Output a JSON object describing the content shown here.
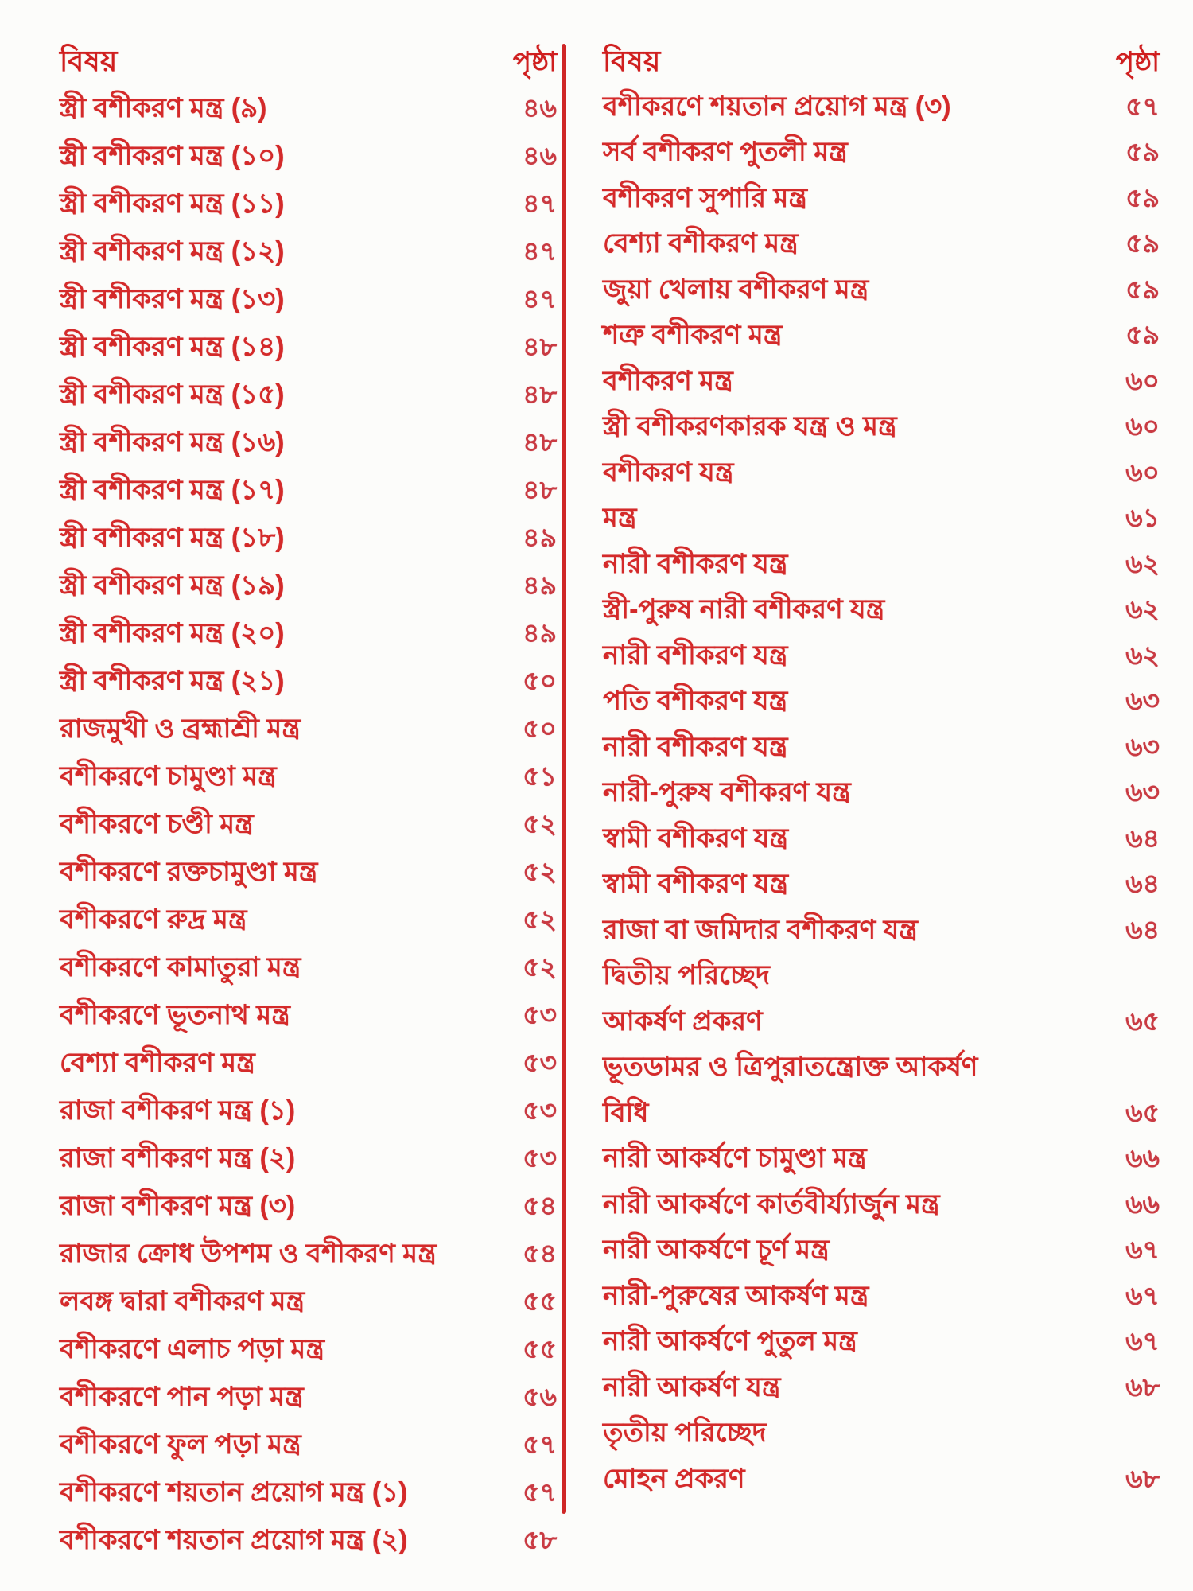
{
  "colors": {
    "text_red": "#d42a2a",
    "number_red": "#c93a42",
    "divider_red": "#cf2626",
    "header_red": "#d01f1f",
    "paper": "#fcfcfa"
  },
  "columns": {
    "left": {
      "subject_header": "বিষয়",
      "page_header": "পৃষ্ঠা",
      "rows": [
        {
          "title": "স্ত্রী বশীকরণ মন্ত্র (৯)",
          "page": "৪৬"
        },
        {
          "title": "স্ত্রী বশীকরণ মন্ত্র (১০)",
          "page": "৪৬"
        },
        {
          "title": "স্ত্রী বশীকরণ মন্ত্র (১১)",
          "page": "৪৭"
        },
        {
          "title": "স্ত্রী বশীকরণ মন্ত্র (১২)",
          "page": "৪৭"
        },
        {
          "title": "স্ত্রী বশীকরণ মন্ত্র (১৩)",
          "page": "৪৭"
        },
        {
          "title": "স্ত্রী বশীকরণ মন্ত্র (১৪)",
          "page": "৪৮"
        },
        {
          "title": "স্ত্রী বশীকরণ মন্ত্র (১৫)",
          "page": "৪৮"
        },
        {
          "title": "স্ত্রী বশীকরণ মন্ত্র (১৬)",
          "page": "৪৮"
        },
        {
          "title": "স্ত্রী বশীকরণ মন্ত্র (১৭)",
          "page": "৪৮"
        },
        {
          "title": "স্ত্রী বশীকরণ মন্ত্র (১৮)",
          "page": "৪৯"
        },
        {
          "title": "স্ত্রী বশীকরণ মন্ত্র (১৯)",
          "page": "৪৯"
        },
        {
          "title": "স্ত্রী বশীকরণ মন্ত্র (২০)",
          "page": "৪৯"
        },
        {
          "title": "স্ত্রী বশীকরণ মন্ত্র (২১)",
          "page": "৫০"
        },
        {
          "title": "রাজমুখী ও ব্রহ্মাশ্রী মন্ত্র",
          "page": "৫০"
        },
        {
          "title": "বশীকরণে চামুণ্ডা মন্ত্র",
          "page": "৫১"
        },
        {
          "title": "বশীকরণে চণ্ডী মন্ত্র",
          "page": "৫২"
        },
        {
          "title": "বশীকরণে রক্তচামুণ্ডা মন্ত্র",
          "page": "৫২"
        },
        {
          "title": "বশীকরণে রুদ্র মন্ত্র",
          "page": "৫২"
        },
        {
          "title": "বশীকরণে কামাতুরা মন্ত্র",
          "page": "৫২"
        },
        {
          "title": "বশীকরণে ভূতনাথ মন্ত্র",
          "page": "৫৩"
        },
        {
          "title": "বেশ্যা বশীকরণ মন্ত্র",
          "page": "৫৩"
        },
        {
          "title": "রাজা বশীকরণ মন্ত্র (১)",
          "page": "৫৩"
        },
        {
          "title": "রাজা বশীকরণ মন্ত্র (২)",
          "page": "৫৩"
        },
        {
          "title": "রাজা বশীকরণ মন্ত্র (৩)",
          "page": "৫৪"
        },
        {
          "title": "রাজার ক্রোধ উপশম ও বশীকরণ মন্ত্র",
          "page": "৫৪"
        },
        {
          "title": "লবঙ্গ দ্বারা বশীকরণ মন্ত্র",
          "page": "৫৫"
        },
        {
          "title": "বশীকরণে এলাচ পড়া মন্ত্র",
          "page": "৫৫"
        },
        {
          "title": "বশীকরণে পান পড়া মন্ত্র",
          "page": "৫৬"
        },
        {
          "title": "বশীকরণে ফুল পড়া মন্ত্র",
          "page": "৫৭"
        },
        {
          "title": "বশীকরণে শয়তান প্রয়োগ মন্ত্র (১)",
          "page": "৫৭"
        },
        {
          "title": "বশীকরণে শয়তান প্রয়োগ মন্ত্র (২)",
          "page": "৫৮"
        }
      ]
    },
    "right": {
      "subject_header": "বিষয়",
      "page_header": "পৃষ্ঠা",
      "rows": [
        {
          "title": "বশীকরণে শয়তান প্রয়োগ মন্ত্র (৩)",
          "page": "৫৭"
        },
        {
          "title": "সর্ব বশীকরণ পুতলী মন্ত্র",
          "page": "৫৯"
        },
        {
          "title": "বশীকরণ সুপারি মন্ত্র",
          "page": "৫৯"
        },
        {
          "title": "বেশ্যা বশীকরণ মন্ত্র",
          "page": "৫৯"
        },
        {
          "title": "জুয়া খেলায় বশীকরণ মন্ত্র",
          "page": "৫৯"
        },
        {
          "title": "শত্রু বশীকরণ মন্ত্র",
          "page": "৫৯"
        },
        {
          "title": "বশীকরণ মন্ত্র",
          "page": "৬০"
        },
        {
          "title": "স্ত্রী বশীকরণকারক যন্ত্র ও মন্ত্র",
          "page": "৬০"
        },
        {
          "title": "বশীকরণ যন্ত্র",
          "page": "৬০"
        },
        {
          "title": "মন্ত্র",
          "page": "৬১"
        },
        {
          "title": "নারী বশীকরণ যন্ত্র",
          "page": "৬২"
        },
        {
          "title": "স্ত্রী-পুরুষ নারী বশীকরণ যন্ত্র",
          "page": "৬২"
        },
        {
          "title": "নারী বশীকরণ যন্ত্র",
          "page": "৬২"
        },
        {
          "title": "পতি বশীকরণ যন্ত্র",
          "page": "৬৩"
        },
        {
          "title": "নারী বশীকরণ যন্ত্র",
          "page": "৬৩"
        },
        {
          "title": "নারী-পুরুষ বশীকরণ যন্ত্র",
          "page": "৬৩"
        },
        {
          "title": "স্বামী বশীকরণ যন্ত্র",
          "page": "৬৪"
        },
        {
          "title": "স্বামী বশীকরণ যন্ত্র",
          "page": "৬৪"
        },
        {
          "title": "রাজা বা জমিদার বশীকরণ যন্ত্র",
          "page": "৬৪"
        },
        {
          "title": "দ্বিতীয় পরিচ্ছেদ",
          "page": ""
        },
        {
          "title": "আকর্ষণ প্রকরণ",
          "page": "৬৫"
        },
        {
          "title": "ভূতডামর ও ত্রিপুরাতন্ত্রোক্ত আকর্ষণ",
          "page": ""
        },
        {
          "title": "বিধি",
          "page": "৬৫"
        },
        {
          "title": "নারী আকর্ষণে চামুণ্ডা মন্ত্র",
          "page": "৬৬"
        },
        {
          "title": "নারী আকর্ষণে কার্তবীর্য্যার্জুন মন্ত্র",
          "page": "৬৬"
        },
        {
          "title": "নারী আকর্ষণে চূর্ণ মন্ত্র",
          "page": "৬৭"
        },
        {
          "title": "নারী-পুরুষের আকর্ষণ মন্ত্র",
          "page": "৬৭"
        },
        {
          "title": "নারী আকর্ষণে পুতুল মন্ত্র",
          "page": "৬৭"
        },
        {
          "title": "নারী আকর্ষণ যন্ত্র",
          "page": "৬৮"
        },
        {
          "title": "তৃতীয় পরিচ্ছেদ",
          "page": ""
        },
        {
          "title": "মোহন প্রকরণ",
          "page": "৬৮"
        }
      ]
    }
  }
}
